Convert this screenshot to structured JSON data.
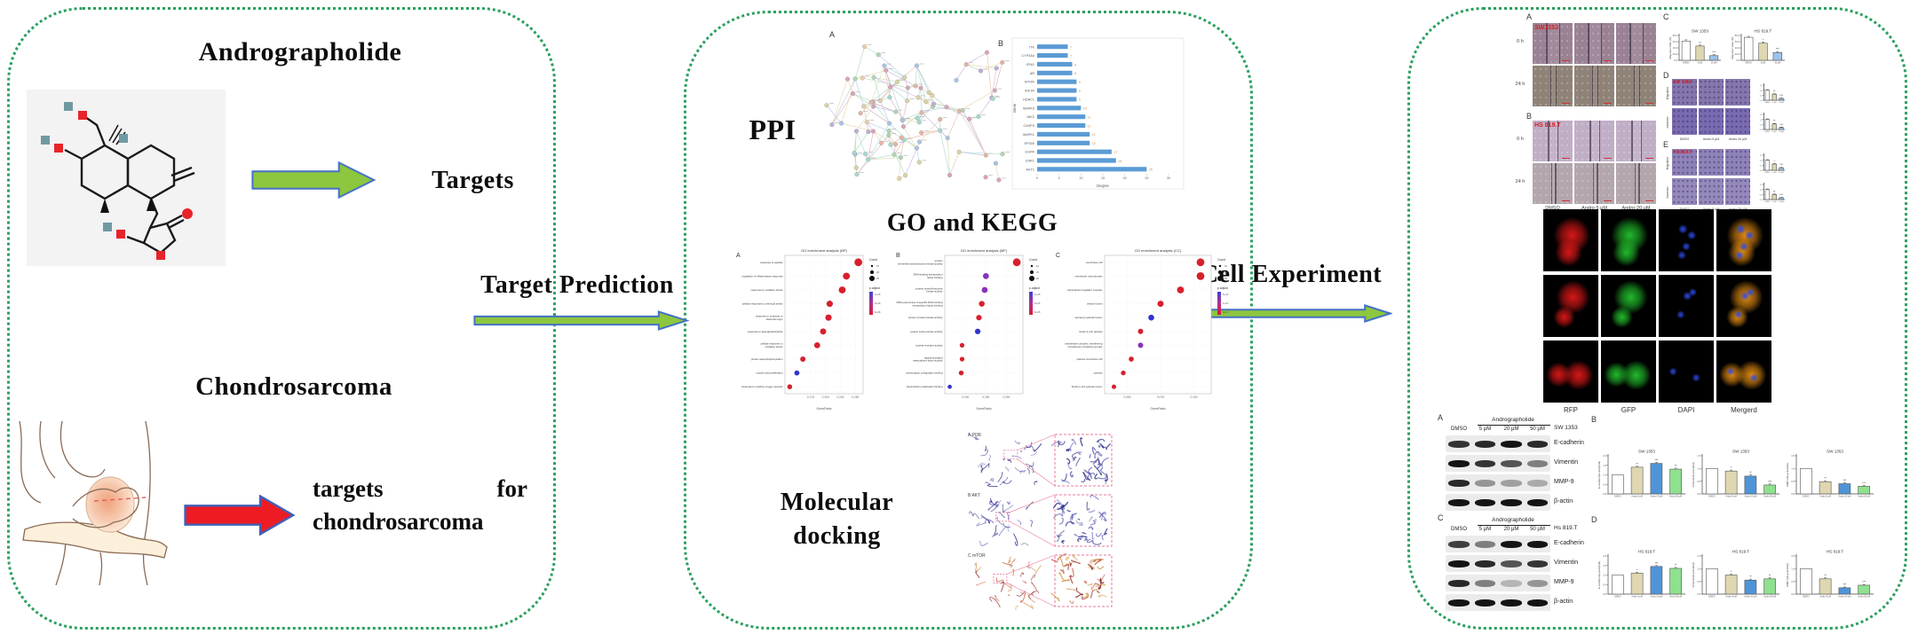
{
  "accent": {
    "border_green": "#2ba05f",
    "arrow_green": "#8dc63f",
    "arrow_red": "#ed1c24",
    "arrow_outline": "#4472c4",
    "bar_blue": "#5b9bd5"
  },
  "left_panel": {
    "compound_title": "Andrographolide",
    "targets_label": "Targets",
    "disease_title": "Chondrosarcoma",
    "disease_targets_word1": "targets",
    "disease_targets_word2": "for",
    "disease_targets_line2": "chondrosarcoma"
  },
  "arrows": {
    "target_prediction": "Target Prediction",
    "cell_experiment": "Cell Experiment"
  },
  "middle_panel": {
    "ppi_label": "PPI",
    "go_kegg_label": "GO and KEGG",
    "docking_line1": "Molecular",
    "docking_line2": "docking",
    "network_letter": "A",
    "bar_letter": "B",
    "docking_items": [
      {
        "label": "A PI3K",
        "colors": [
          "#23237f",
          "#4d4da8"
        ]
      },
      {
        "label": "B AKT",
        "colors": [
          "#2e2e92",
          "#6868b8"
        ]
      },
      {
        "label": "C mTOR",
        "colors": [
          "#8c1f1f",
          "#c2542e",
          "#cf9040"
        ]
      }
    ]
  },
  "right_panel": {
    "wound": {
      "panel_a": "A",
      "panel_b": "B",
      "panel_c": "C",
      "panel_d": "D",
      "panel_e": "E",
      "cell_line_a": "SW1353",
      "cell_line_b": "HS 819.T",
      "cell_line_d": "SW 1353",
      "cell_line_e": "HS.819.T",
      "row_labels": [
        "0 h",
        "24 h"
      ],
      "col_labels": [
        "DMSO",
        "Andro-5 μM",
        "Andro-20 μM"
      ],
      "trans_row_labels": [
        "Migration",
        "Invasion"
      ]
    },
    "fluor": {
      "channels": [
        "RFP",
        "GFP",
        "DAPI",
        "Mergerd"
      ]
    },
    "wb": {
      "panel_a": "A",
      "panel_b": "B",
      "panel_c": "C",
      "panel_d": "D",
      "drug": "Andrographolide",
      "doses": [
        "DMSO",
        "5 μM",
        "20 μM",
        "50 μM"
      ],
      "cell_line_a": "SW 1353",
      "cell_line_c": "Hs 819.T",
      "proteins": [
        "E-cadherin",
        "Vimentin",
        "MMP-9",
        "β-actin"
      ]
    }
  },
  "chart_data": [
    {
      "id": "ppi_degree",
      "type": "bar",
      "orientation": "horizontal",
      "panel_letter": "B",
      "title": "",
      "xlabel": "Degree",
      "ylabel": "Gene",
      "categories": [
        "ITK",
        "CYP3A4",
        "IFNG",
        "AR",
        "MTOR",
        "IGF1R",
        "HDAC1",
        "MAPK3",
        "JAK2",
        "CASP3",
        "MAPK1",
        "EP300",
        "EGFR",
        "ESR1",
        "AKT1"
      ],
      "values": [
        7,
        7,
        8,
        8,
        9,
        9,
        9,
        10,
        11,
        11,
        12,
        12,
        17,
        18,
        25
      ],
      "xlim": [
        0,
        30
      ],
      "xticks": [
        0,
        5,
        10,
        15,
        20,
        25,
        30
      ],
      "bar_color": "#5b9bd5"
    },
    {
      "id": "go_bp",
      "type": "scatter",
      "panel_letter": "A",
      "title": "GO enrichment analysis (BP)",
      "xlabel": "GeneRatio",
      "terms": [
        "response to peptide",
        "regulation of inflammatory response",
        "response to oxidative stress",
        "cellular response to chemical stress",
        "response to molecule of bacterial origin",
        "response to lipopolysaccharide",
        "cellular response to oxidative stress",
        "protein autophosphorylation",
        "muscle cell proliferation",
        "response to reactive oxygen species"
      ],
      "x": [
        0.255,
        0.235,
        0.228,
        0.207,
        0.205,
        0.196,
        0.186,
        0.162,
        0.152,
        0.14
      ],
      "sizes": [
        24,
        20,
        20,
        17,
        17,
        16,
        15,
        12,
        11,
        10
      ],
      "colors": [
        "#d6202e",
        "#d6202e",
        "#d6202e",
        "#d6202e",
        "#d6202e",
        "#d6202e",
        "#d6202e",
        "#d6202e",
        "#3333cc",
        "#d6202e"
      ],
      "xticks": [
        0.175,
        0.2,
        0.225,
        0.25
      ],
      "xlim": [
        0.132,
        0.263
      ],
      "legend_count_title": "Count",
      "legend_counts": [
        15,
        20,
        25
      ],
      "legend_padjust_title": "p.adjust",
      "padjust_labels": [
        "1e-08",
        "3e-08",
        "5e-08"
      ]
    },
    {
      "id": "go_mf",
      "type": "scatter",
      "panel_letter": "B",
      "title": "GO enrichment analysis (MF)",
      "xlabel": "GeneRatio",
      "terms": [
        "protein serine/threonine/tyrosine kinase activity",
        "DNA-binding transcription factor binding",
        "protein serine/threonine kinase activity",
        "RNA polymerase II-specific DNA-binding transcription factor binding",
        "protein tyrosine kinase activity",
        "protein serine kinase activity",
        "nuclear receptor activity",
        "ligand-activated transcription factor activity",
        "transcription coregulator binding",
        "transcription coactivator binding"
      ],
      "x": [
        0.225,
        0.15,
        0.147,
        0.14,
        0.133,
        0.13,
        0.092,
        0.092,
        0.09,
        0.062
      ],
      "sizes": [
        22,
        14,
        14,
        13,
        12,
        12,
        8,
        8,
        9,
        6
      ],
      "colors": [
        "#d6202e",
        "#8833bb",
        "#8833bb",
        "#d6202e",
        "#d6202e",
        "#3333cc",
        "#d6202e",
        "#d6202e",
        "#d6202e",
        "#3333cc"
      ],
      "xticks": [
        0.1,
        0.15,
        0.2
      ],
      "xlim": [
        0.05,
        0.24
      ],
      "legend_count_title": "Count",
      "legend_counts": [
        10,
        15,
        20
      ],
      "legend_padjust_title": "p.adjust",
      "padjust_labels": [
        "1e-05",
        "3e-05",
        "5e-05"
      ]
    },
    {
      "id": "go_cc",
      "type": "scatter",
      "panel_letter": "C",
      "title": "GO enrichment analysis (CC)",
      "xlabel": "GeneRatio",
      "terms": [
        "membrane raft",
        "membrane microdomain",
        "transcription regulator complex",
        "vesicle lumen",
        "secretory granule lumen",
        "ficolin-1-rich granule",
        "transferase complex, transferring phosphorus-containing groups",
        "plasma membrane raft",
        "caveola",
        "ficolin-1-rich granule lumen"
      ],
      "x": [
        0.105,
        0.105,
        0.09,
        0.075,
        0.068,
        0.06,
        0.06,
        0.053,
        0.047,
        0.04
      ],
      "sizes": [
        18,
        18,
        15,
        12,
        11,
        9,
        9,
        8,
        7,
        6
      ],
      "colors": [
        "#d6202e",
        "#d6202e",
        "#d6202e",
        "#d6202e",
        "#3333cc",
        "#d6202e",
        "#8833bb",
        "#d6202e",
        "#d6202e",
        "#d6202e"
      ],
      "xticks": [
        0.05,
        0.075,
        0.1
      ],
      "xlim": [
        0.033,
        0.113
      ],
      "legend_count_title": "Count",
      "legend_counts": [
        10,
        15,
        20
      ],
      "legend_padjust_title": "p.adjust",
      "padjust_labels": [
        "5e-04",
        "1e-03",
        "2e-03"
      ]
    },
    {
      "id": "mig_sw",
      "type": "bar",
      "title": "SW 1353",
      "ylabel": "Migration Rate (%)",
      "categories": [
        "DMSO",
        "5 μM",
        "20 μM"
      ],
      "values": [
        62,
        46,
        15
      ],
      "errors": [
        4,
        3,
        3
      ],
      "sigs": [
        "",
        "**",
        "***"
      ],
      "ylim": [
        0,
        80
      ],
      "yticks": [
        0,
        20,
        40,
        60,
        80
      ],
      "colors": [
        "#ffffff",
        "#ded7b1",
        "#9cc3e8"
      ]
    },
    {
      "id": "mig_hs",
      "type": "bar",
      "title": "HS 819.T",
      "ylabel": "Migration Rate (%)",
      "categories": [
        "DMSO",
        "5 μM",
        "20 μM"
      ],
      "values": [
        74,
        55,
        25
      ],
      "errors": [
        3,
        4,
        3
      ],
      "sigs": [
        "",
        "*",
        "***"
      ],
      "ylim": [
        0,
        80
      ],
      "yticks": [
        0,
        20,
        40,
        60,
        80
      ],
      "colors": [
        "#ffffff",
        "#ded7b1",
        "#9cc3e8"
      ]
    },
    {
      "id": "tw_d_mig",
      "type": "bar",
      "mini": true,
      "title": "",
      "ylabel": "",
      "categories": [
        "DMSO",
        "5 μM",
        "20 μM"
      ],
      "values": [
        1.0,
        0.6,
        0.18
      ],
      "errors": [
        0.05,
        0.05,
        0.04
      ],
      "sigs": [
        "",
        "**",
        "***"
      ],
      "ylim": [
        0,
        1.5
      ],
      "yticks": [
        0,
        0.5,
        1.0,
        1.5
      ],
      "colors": [
        "#ffffff",
        "#ded7b1",
        "#9cc3e8"
      ]
    },
    {
      "id": "tw_d_inv",
      "type": "bar",
      "mini": true,
      "title": "",
      "ylabel": "",
      "categories": [
        "DMSO",
        "5 μM",
        "20 μM"
      ],
      "values": [
        1.0,
        0.55,
        0.2
      ],
      "errors": [
        0.05,
        0.05,
        0.04
      ],
      "sigs": [
        "",
        "**",
        "***"
      ],
      "ylim": [
        0,
        1.5
      ],
      "yticks": [
        0,
        0.5,
        1.0,
        1.5
      ],
      "colors": [
        "#ffffff",
        "#ded7b1",
        "#9cc3e8"
      ]
    },
    {
      "id": "tw_e_mig",
      "type": "bar",
      "mini": true,
      "title": "",
      "ylabel": "",
      "categories": [
        "DMSO",
        "5 μM",
        "20 μM"
      ],
      "values": [
        1.0,
        0.62,
        0.25
      ],
      "errors": [
        0.05,
        0.05,
        0.04
      ],
      "sigs": [
        "",
        "*",
        "***"
      ],
      "ylim": [
        0,
        1.5
      ],
      "yticks": [
        0,
        0.5,
        1.0,
        1.5
      ],
      "colors": [
        "#ffffff",
        "#ded7b1",
        "#9cc3e8"
      ]
    },
    {
      "id": "tw_e_inv",
      "type": "bar",
      "mini": true,
      "title": "",
      "ylabel": "",
      "categories": [
        "DMSO",
        "5 μM",
        "20 μM"
      ],
      "values": [
        1.0,
        0.5,
        0.18
      ],
      "errors": [
        0.05,
        0.05,
        0.04
      ],
      "sigs": [
        "",
        "**",
        "***"
      ],
      "ylim": [
        0,
        1.5
      ],
      "yticks": [
        0,
        0.5,
        1.0,
        1.5
      ],
      "colors": [
        "#ffffff",
        "#ded7b1",
        "#9cc3e8"
      ]
    },
    {
      "id": "wb_sw_ecad",
      "type": "bar",
      "title": "SW 1353",
      "ylabel": "E-cadherin/β-actin(fold)",
      "categories": [
        "DMSO",
        "Andro-5 μM",
        "Andro-20 μM",
        "Andro-50 μM"
      ],
      "values": [
        1.0,
        1.4,
        1.6,
        1.3
      ],
      "errors": [
        0,
        0.05,
        0.05,
        0.05
      ],
      "sigs": [
        "",
        "**",
        "***",
        "**"
      ],
      "ylim": [
        0,
        2.0
      ],
      "yticks": [
        0,
        0.5,
        1.0,
        1.5,
        2.0
      ],
      "colors": [
        "#ffffff",
        "#ded7b1",
        "#4f94d8",
        "#8fe08f"
      ]
    },
    {
      "id": "wb_sw_vim",
      "type": "bar",
      "title": "SW 1353",
      "ylabel": "Vimentin/β-actin(fold)",
      "categories": [
        "DMSO",
        "Andro-5 μM",
        "Andro-20 μM",
        "Andro-50 μM"
      ],
      "values": [
        1.0,
        0.9,
        0.7,
        0.35
      ],
      "errors": [
        0,
        0.04,
        0.05,
        0.04
      ],
      "sigs": [
        "",
        "*",
        "**",
        "***"
      ],
      "ylim": [
        0,
        1.5
      ],
      "yticks": [
        0,
        0.5,
        1.0,
        1.5
      ],
      "colors": [
        "#ffffff",
        "#ded7b1",
        "#4f94d8",
        "#8fe08f"
      ]
    },
    {
      "id": "wb_sw_mmp",
      "type": "bar",
      "title": "SW 1353",
      "ylabel": "MMP-9/β-actin(fold)",
      "categories": [
        "DMSO",
        "Andro-5 μM",
        "Andro-20 μM",
        "Andro-50 μM"
      ],
      "values": [
        1.0,
        0.48,
        0.4,
        0.3
      ],
      "errors": [
        0,
        0.04,
        0.04,
        0.03
      ],
      "sigs": [
        "",
        "**",
        "***",
        "***"
      ],
      "ylim": [
        0,
        1.5
      ],
      "yticks": [
        0,
        0.5,
        1.0,
        1.5
      ],
      "colors": [
        "#ffffff",
        "#ded7b1",
        "#4f94d8",
        "#8fe08f"
      ]
    },
    {
      "id": "wb_hs_ecad",
      "type": "bar",
      "title": "HS 819.T",
      "ylabel": "E-cadherin/β-actin(fold)",
      "categories": [
        "DMSO",
        "Andro-5 μM",
        "Andro-20 μM",
        "Andro-50 μM"
      ],
      "values": [
        1.0,
        1.1,
        1.45,
        1.35
      ],
      "errors": [
        0,
        0.04,
        0.05,
        0.05
      ],
      "sigs": [
        "",
        "*",
        "***",
        "**"
      ],
      "ylim": [
        0,
        2.0
      ],
      "yticks": [
        0,
        0.5,
        1.0,
        1.5,
        2.0
      ],
      "colors": [
        "#ffffff",
        "#ded7b1",
        "#4f94d8",
        "#8fe08f"
      ]
    },
    {
      "id": "wb_hs_vim",
      "type": "bar",
      "title": "HS 819.T",
      "ylabel": "Vimentin/β-actin(fold)",
      "categories": [
        "DMSO",
        "Andro-5 μM",
        "Andro-20 μM",
        "Andro-50 μM"
      ],
      "values": [
        1.0,
        0.75,
        0.55,
        0.6
      ],
      "errors": [
        0,
        0.04,
        0.04,
        0.04
      ],
      "sigs": [
        "",
        "*",
        "**",
        "**"
      ],
      "ylim": [
        0,
        1.5
      ],
      "yticks": [
        0,
        0.5,
        1.0,
        1.5
      ],
      "colors": [
        "#ffffff",
        "#ded7b1",
        "#4f94d8",
        "#8fe08f"
      ]
    },
    {
      "id": "wb_hs_mmp",
      "type": "bar",
      "title": "HS 819.T",
      "ylabel": "MMP-9/β-actin(fold)",
      "categories": [
        "DMSO",
        "Andro-5 μM",
        "Andro-20 μM",
        "Andro-50 μM"
      ],
      "values": [
        1.0,
        0.6,
        0.25,
        0.35
      ],
      "errors": [
        0,
        0.04,
        0.03,
        0.03
      ],
      "sigs": [
        "",
        "**",
        "***",
        "***"
      ],
      "ylim": [
        0,
        1.5
      ],
      "yticks": [
        0,
        0.5,
        1.0,
        1.5
      ],
      "colors": [
        "#ffffff",
        "#ded7b1",
        "#4f94d8",
        "#8fe08f"
      ]
    }
  ]
}
